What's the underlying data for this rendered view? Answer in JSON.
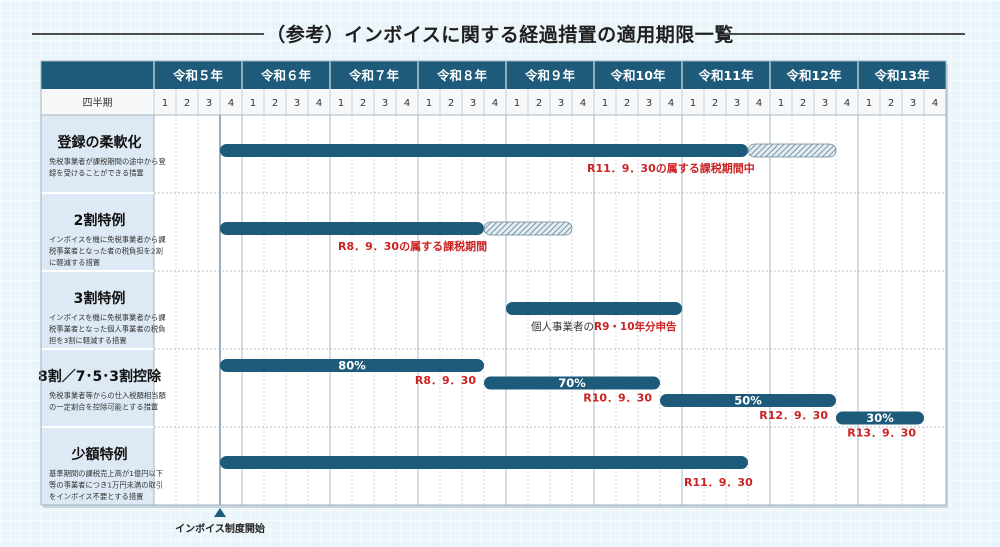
{
  "title": "（参考）インボイスに関する経過措置の適用期限一覧",
  "quarter_header_label": "四半期",
  "start_marker_label": "インボイス制度開始",
  "colors": {
    "header_bg": "#1e5a7a",
    "bar": "#1e5a7a",
    "row_label_bg": "#dde9f4",
    "red_text": "#cc2222"
  },
  "chart_data": {
    "type": "gantt",
    "years": [
      "令和５年",
      "令和６年",
      "令和７年",
      "令和８年",
      "令和９年",
      "令和10年",
      "令和11年",
      "令和12年",
      "令和13年"
    ],
    "quarters": [
      "1",
      "2",
      "3",
      "4"
    ],
    "measures": [
      {
        "title": "登録の柔軟化",
        "desc": [
          "免税事業者が課税期間の途中から登",
          "録を受けることができる措置"
        ],
        "bars": [
          {
            "start": "令和5年Q4",
            "end": "令和11年Q3",
            "style": "solid",
            "label": ""
          },
          {
            "start": "令和11年Q4",
            "end": "令和12年Q3",
            "style": "hatched",
            "label": ""
          }
        ],
        "notes": [
          {
            "text": "R11．9．30の属する課税期間中",
            "color": "red"
          }
        ]
      },
      {
        "title": "2割特例",
        "desc": [
          "インボイスを機に免税事業者から課",
          "税事業者となった者の税負担を2割",
          "に軽減する措置"
        ],
        "bars": [
          {
            "start": "令和5年Q4",
            "end": "令和8年Q3",
            "style": "solid",
            "label": ""
          },
          {
            "start": "令和8年Q4",
            "end": "令和9年Q3",
            "style": "hatched",
            "label": ""
          }
        ],
        "notes": [
          {
            "text": "R8．9．30の属する課税期間",
            "color": "red"
          }
        ]
      },
      {
        "title": "3割特例",
        "desc": [
          "インボイスを機に免税事業者から課",
          "税事業者となった個人事業者の税負",
          "担を3割に軽減する措置"
        ],
        "bars": [
          {
            "start": "令和9年Q1",
            "end": "令和10年Q4",
            "style": "solid",
            "label": ""
          }
        ],
        "notes": [
          {
            "text_prefix": "個人事業者の",
            "text": "R9・10年分申告",
            "color": "red"
          }
        ]
      },
      {
        "title": "8割／7･5･3割控除",
        "desc": [
          "免税事業者等からの仕入税額相当額",
          "の一定割合を控除可能とする措置"
        ],
        "bars": [
          {
            "start": "令和5年Q4",
            "end": "令和8年Q3",
            "style": "solid",
            "label": "80%",
            "end_label": "R8．9．30"
          },
          {
            "start": "令和8年Q4",
            "end": "令和10年Q3",
            "style": "solid",
            "label": "70%",
            "end_label": "R10．9．30"
          },
          {
            "start": "令和10年Q4",
            "end": "令和12年Q3",
            "style": "solid",
            "label": "50%",
            "end_label": "R12．9．30"
          },
          {
            "start": "令和12年Q4",
            "end": "令和13年Q3",
            "style": "solid",
            "label": "30%",
            "end_label": "R13．9．30"
          }
        ],
        "notes": []
      },
      {
        "title": "少額特例",
        "desc": [
          "基準期間の課税売上高が1億円以下",
          "等の事業者につき1万円未満の取引",
          "をインボイス不要とする措置"
        ],
        "bars": [
          {
            "start": "令和5年Q4",
            "end": "令和11年Q3",
            "style": "solid",
            "label": ""
          }
        ],
        "notes": [
          {
            "text": "R11．9．30",
            "color": "red"
          }
        ]
      }
    ]
  }
}
